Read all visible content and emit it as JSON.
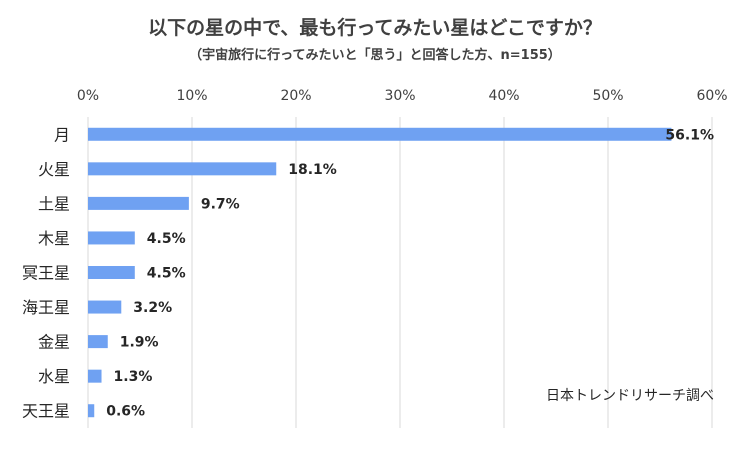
{
  "chart_data": {
    "type": "bar",
    "orientation": "horizontal",
    "title": "以下の星の中で、最も行ってみたい星はどこですか？",
    "subtitle": "（宇宙旅行に行ってみたいと「思う」と回答した方、n=155）",
    "categories": [
      "月",
      "火星",
      "土星",
      "木星",
      "冥王星",
      "海王星",
      "金星",
      "水星",
      "天王星"
    ],
    "values": [
      56.1,
      18.1,
      9.7,
      4.5,
      4.5,
      3.2,
      1.9,
      1.3,
      0.6
    ],
    "data_labels": [
      "56.1%",
      "18.1%",
      "9.7%",
      "4.5%",
      "4.5%",
      "3.2%",
      "1.9%",
      "1.3%",
      "0.6%"
    ],
    "xlim": [
      0,
      60
    ],
    "x_ticks": [
      0,
      10,
      20,
      30,
      40,
      50,
      60
    ],
    "x_tick_labels": [
      "0%",
      "10%",
      "20%",
      "30%",
      "40%",
      "50%",
      "60%"
    ],
    "grid": "vertical",
    "bar_color": "#6fa1f2",
    "source": "日本トレンドリサーチ調べ"
  }
}
